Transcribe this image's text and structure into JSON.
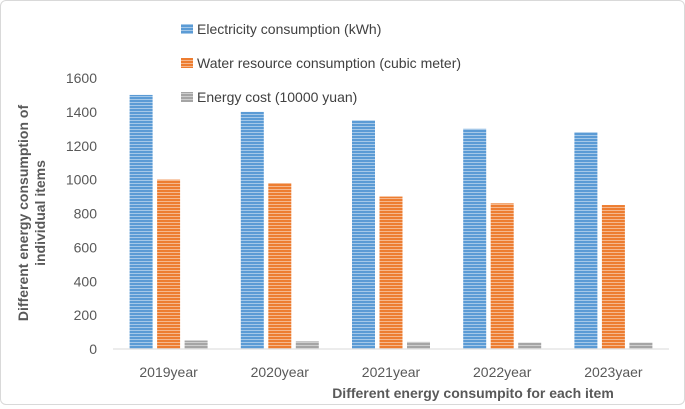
{
  "chart_data": {
    "type": "bar",
    "title": "",
    "xlabel": "Different energy consumpito for each item",
    "ylabel": "Different energy consumption of individual items",
    "ylim": [
      0,
      1600
    ],
    "ytick_step": 200,
    "grid": false,
    "legend_position": "top-center",
    "categories": [
      "2019year",
      "2020year",
      "2021year",
      "2022year",
      "2023yaer"
    ],
    "series": [
      {
        "name": "Electricity consumption (kWh)",
        "color": "#5b9bd5",
        "values": [
          1500,
          1400,
          1350,
          1300,
          1280
        ]
      },
      {
        "name": "Water resource consumption (cubic meter)",
        "color": "#ed7d31",
        "values": [
          1000,
          980,
          900,
          860,
          850
        ]
      },
      {
        "name": "Energy cost (10000 yuan)",
        "color": "#a5a5a5",
        "values": [
          50,
          45,
          42,
          38,
          38
        ]
      }
    ]
  }
}
